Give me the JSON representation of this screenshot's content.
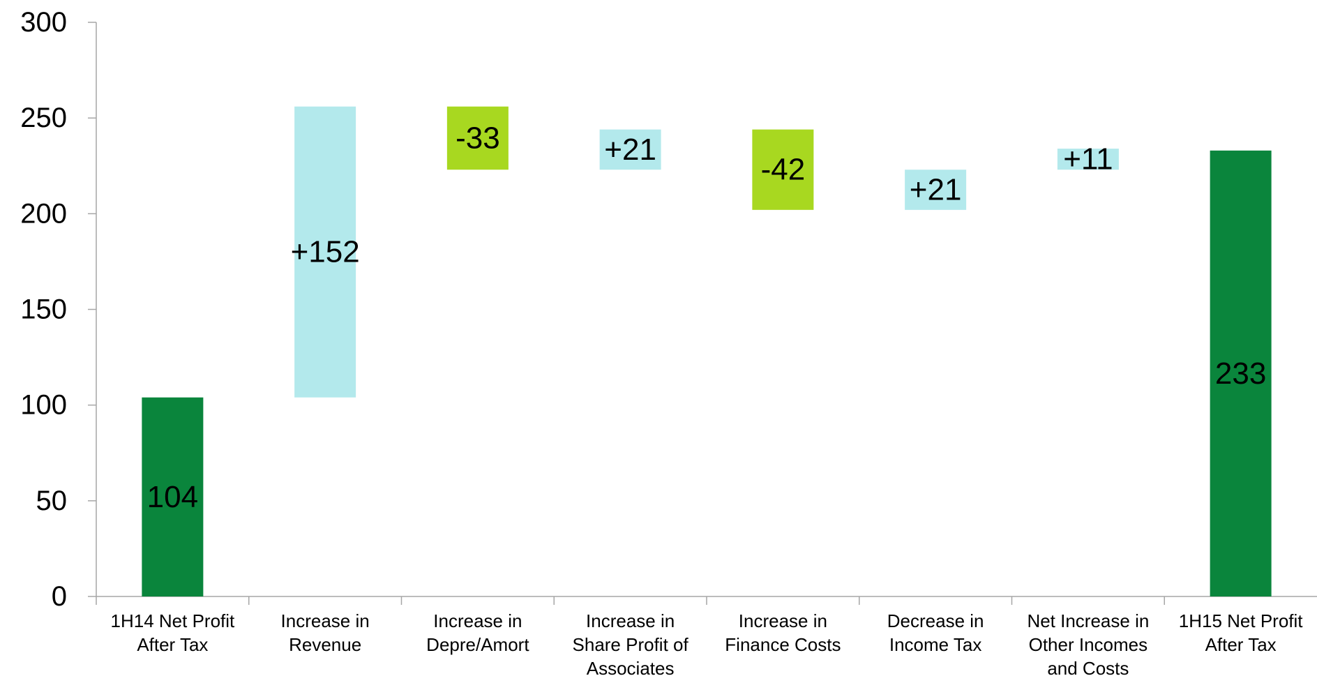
{
  "chart_data": {
    "type": "bar",
    "subtype": "waterfall",
    "title": "",
    "xlabel": "",
    "ylabel": "",
    "ylim": [
      0,
      300
    ],
    "yticks": [
      0,
      50,
      100,
      150,
      200,
      250,
      300
    ],
    "grid": false,
    "legend": "none",
    "categories": [
      [
        "1H14 Net Profit",
        "After Tax"
      ],
      [
        "Increase in",
        "Revenue"
      ],
      [
        "Increase in",
        "Depre/Amort"
      ],
      [
        "Increase in",
        "Share Profit of",
        "Associates"
      ],
      [
        "Increase in",
        "Finance Costs"
      ],
      [
        "Decrease in",
        "Income Tax"
      ],
      [
        "Net Increase in",
        "Other Incomes",
        "and Costs"
      ],
      [
        "1H15 Net Profit",
        "After Tax"
      ]
    ],
    "bars": [
      {
        "start": 0,
        "end": 104,
        "kind": "total",
        "label": "104"
      },
      {
        "start": 104,
        "end": 256,
        "kind": "increase",
        "label": "+152"
      },
      {
        "start": 256,
        "end": 223,
        "kind": "decrease",
        "label": "-33"
      },
      {
        "start": 223,
        "end": 244,
        "kind": "increase",
        "label": "+21"
      },
      {
        "start": 244,
        "end": 202,
        "kind": "decrease",
        "label": "-42"
      },
      {
        "start": 202,
        "end": 223,
        "kind": "increase",
        "label": "+21"
      },
      {
        "start": 223,
        "end": 234,
        "kind": "increase",
        "label": "+11"
      },
      {
        "start": 0,
        "end": 233,
        "kind": "total",
        "label": "233"
      }
    ],
    "colors": {
      "total": "#0a853c",
      "increase": "#b3e9ec",
      "decrease": "#a8d820",
      "axis": "#a6a6a6",
      "text": "#000000"
    }
  }
}
